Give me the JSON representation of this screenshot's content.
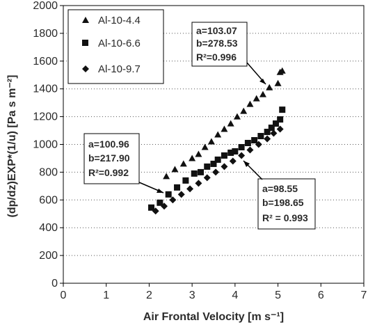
{
  "chart_data": {
    "type": "scatter",
    "xlabel": "Air Frontal Velocity [m s⁻¹]",
    "ylabel": "(dp/dz)EXP*(1/u) [Pa s m⁻²]",
    "xlim": [
      0,
      7
    ],
    "ylim": [
      0,
      2000
    ],
    "x_ticks": [
      "0",
      "1",
      "2",
      "3",
      "4",
      "5",
      "6",
      "7"
    ],
    "y_ticks": [
      "0",
      "200",
      "400",
      "600",
      "800",
      "1000",
      "1200",
      "1400",
      "1600",
      "1800",
      "2000"
    ],
    "grid": "horizontal-dotted",
    "legend_position": "top-left",
    "series": [
      {
        "name": "Al-10-4.4",
        "marker": "triangle",
        "x": [
          2.4,
          2.6,
          2.8,
          3.0,
          3.15,
          3.3,
          3.45,
          3.6,
          3.75,
          3.9,
          4.05,
          4.2,
          4.35,
          4.5,
          4.65,
          4.8,
          5.0,
          5.05,
          5.1
        ],
        "y": [
          770,
          820,
          860,
          900,
          930,
          980,
          1020,
          1070,
          1110,
          1150,
          1200,
          1240,
          1290,
          1330,
          1360,
          1410,
          1440,
          1520,
          1530
        ]
      },
      {
        "name": "Al-10-6.6",
        "marker": "square",
        "x": [
          2.05,
          2.25,
          2.45,
          2.65,
          2.85,
          3.05,
          3.2,
          3.35,
          3.5,
          3.6,
          3.75,
          3.9,
          4.0,
          4.15,
          4.3,
          4.45,
          4.6,
          4.75,
          4.85,
          4.95,
          5.05,
          5.1
        ],
        "y": [
          545,
          580,
          640,
          690,
          740,
          790,
          800,
          840,
          860,
          890,
          920,
          940,
          950,
          980,
          1010,
          1030,
          1060,
          1090,
          1120,
          1150,
          1180,
          1250
        ]
      },
      {
        "name": "Al-10-9.7",
        "marker": "diamond",
        "x": [
          2.15,
          2.35,
          2.55,
          2.75,
          2.95,
          3.15,
          3.35,
          3.55,
          3.75,
          3.95,
          4.15,
          4.35,
          4.55,
          4.75,
          4.9,
          5.05
        ],
        "y": [
          520,
          555,
          600,
          640,
          680,
          720,
          760,
          800,
          840,
          880,
          920,
          960,
          1000,
          1040,
          1080,
          1110
        ]
      }
    ],
    "annotations": [
      {
        "lines": [
          "a=103.07",
          "b=278.53",
          "R²=0.996"
        ]
      },
      {
        "lines": [
          "a=100.96",
          "b=217.90",
          "R²=0.992"
        ]
      },
      {
        "lines": [
          "a=98.55",
          "b=198.65",
          "R² = 0.993"
        ]
      }
    ]
  }
}
